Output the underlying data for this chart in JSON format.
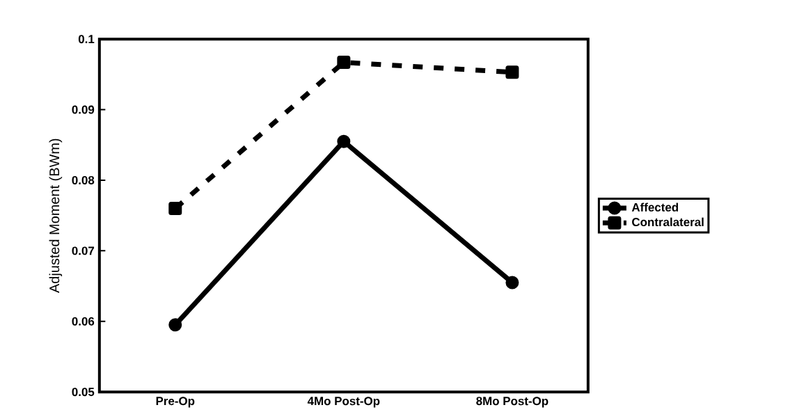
{
  "chart_data": {
    "type": "line",
    "ylabel": "Adjusted Moment (BWm)",
    "categories": [
      "Pre-Op",
      "4Mo Post-Op",
      "8Mo Post-Op"
    ],
    "series": [
      {
        "name": "Affected",
        "color": "#000000",
        "values": [
          0.0595,
          0.0855,
          0.0655
        ],
        "marker": "circle",
        "line_style": "solid"
      },
      {
        "name": "Contralateral",
        "color": "#000000",
        "values": [
          0.076,
          0.0967,
          0.0953
        ],
        "marker": "square",
        "line_style": "dashed"
      }
    ],
    "ylim": [
      0.05,
      0.1
    ],
    "yticks": [
      0.05,
      0.06,
      0.07,
      0.08,
      0.09,
      0.1
    ],
    "grid": false,
    "legend": "right"
  }
}
